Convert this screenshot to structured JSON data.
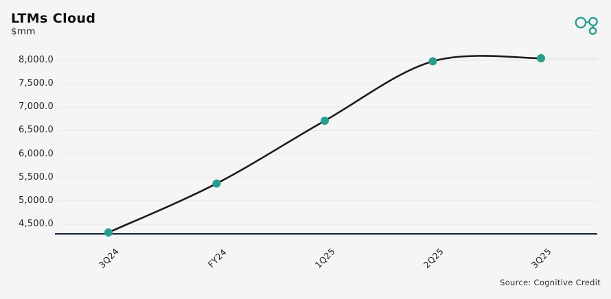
{
  "header": {
    "title": "LTMs Cloud",
    "subtitle": "$mm",
    "logo_icon": "cognitive-credit-logo"
  },
  "footer": {
    "source": "Source: Cognitive Credit"
  },
  "colors": {
    "background": "#f5f5f6",
    "accent_teal": "#2a9d8c",
    "series_line": "#1b1b1b",
    "baseline_navy": "#152238",
    "gridline": "#e8e8e8",
    "last_value_extension": "#e3e3e3",
    "text": "#1f1f1f"
  },
  "chart_data": {
    "type": "line",
    "title": "LTMs Cloud",
    "subtitle": "$mm",
    "series_name": "LTMs Cloud ($mm)",
    "categories": [
      "3Q24",
      "FY24",
      "1Q25",
      "2Q25",
      "3Q25"
    ],
    "values": [
      4325,
      5370,
      6710,
      7980,
      8045
    ],
    "yticks": [
      8000,
      7500,
      7000,
      6500,
      6000,
      5500,
      5000,
      4500
    ],
    "ytick_labels": [
      "8,000.0",
      "7,500.0",
      "7,000.0",
      "6,500.0",
      "6,000.0",
      "5,500.0",
      "5,000.0",
      "4,500.0"
    ],
    "ylim": [
      4290,
      8180
    ],
    "grid": "horizontal",
    "legend": "none",
    "marker": "circle",
    "smooth": true
  }
}
